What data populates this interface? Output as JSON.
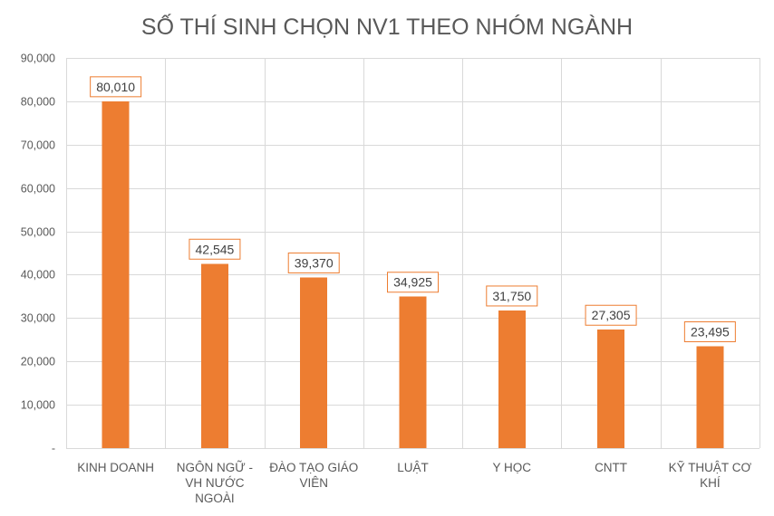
{
  "chart_data": {
    "type": "bar",
    "title": "SỐ THÍ SINH CHỌN NV1 THEO NHÓM NGÀNH",
    "categories": [
      "KINH DOANH",
      "NGÔN NGỮ - VH NƯỚC NGOÀI",
      "ĐÀO TẠO GIÁO VIÊN",
      "LUẬT",
      "Y HỌC",
      "CNTT",
      "KỸ THUẬT CƠ KHÍ"
    ],
    "category_lines": [
      [
        "KINH DOANH"
      ],
      [
        "NGÔN NGỮ -",
        "VH NƯỚC",
        "NGOÀI"
      ],
      [
        "ĐÀO TẠO GIÁO",
        "VIÊN"
      ],
      [
        "LUẬT"
      ],
      [
        "Y HỌC"
      ],
      [
        "CNTT"
      ],
      [
        "KỸ THUẬT CƠ",
        "KHÍ"
      ]
    ],
    "values": [
      80010,
      42545,
      39370,
      34925,
      31750,
      27305,
      23495
    ],
    "data_labels": [
      "80,010",
      "42,545",
      "39,370",
      "34,925",
      "31,750",
      "27,305",
      "23,495"
    ],
    "ylim": [
      0,
      90000
    ],
    "yticks": [
      0,
      10000,
      20000,
      30000,
      40000,
      50000,
      60000,
      70000,
      80000,
      90000
    ],
    "ytick_labels": [
      "-",
      "10,000",
      "20,000",
      "30,000",
      "40,000",
      "50,000",
      "60,000",
      "70,000",
      "80,000",
      "90,000"
    ],
    "xlabel": "",
    "ylabel": "",
    "grid": true,
    "legend": "none",
    "colors": {
      "bar": "#ed7d31",
      "grid": "#d9d9d9",
      "text": "#595959",
      "label_border": "#ed7d31"
    }
  }
}
